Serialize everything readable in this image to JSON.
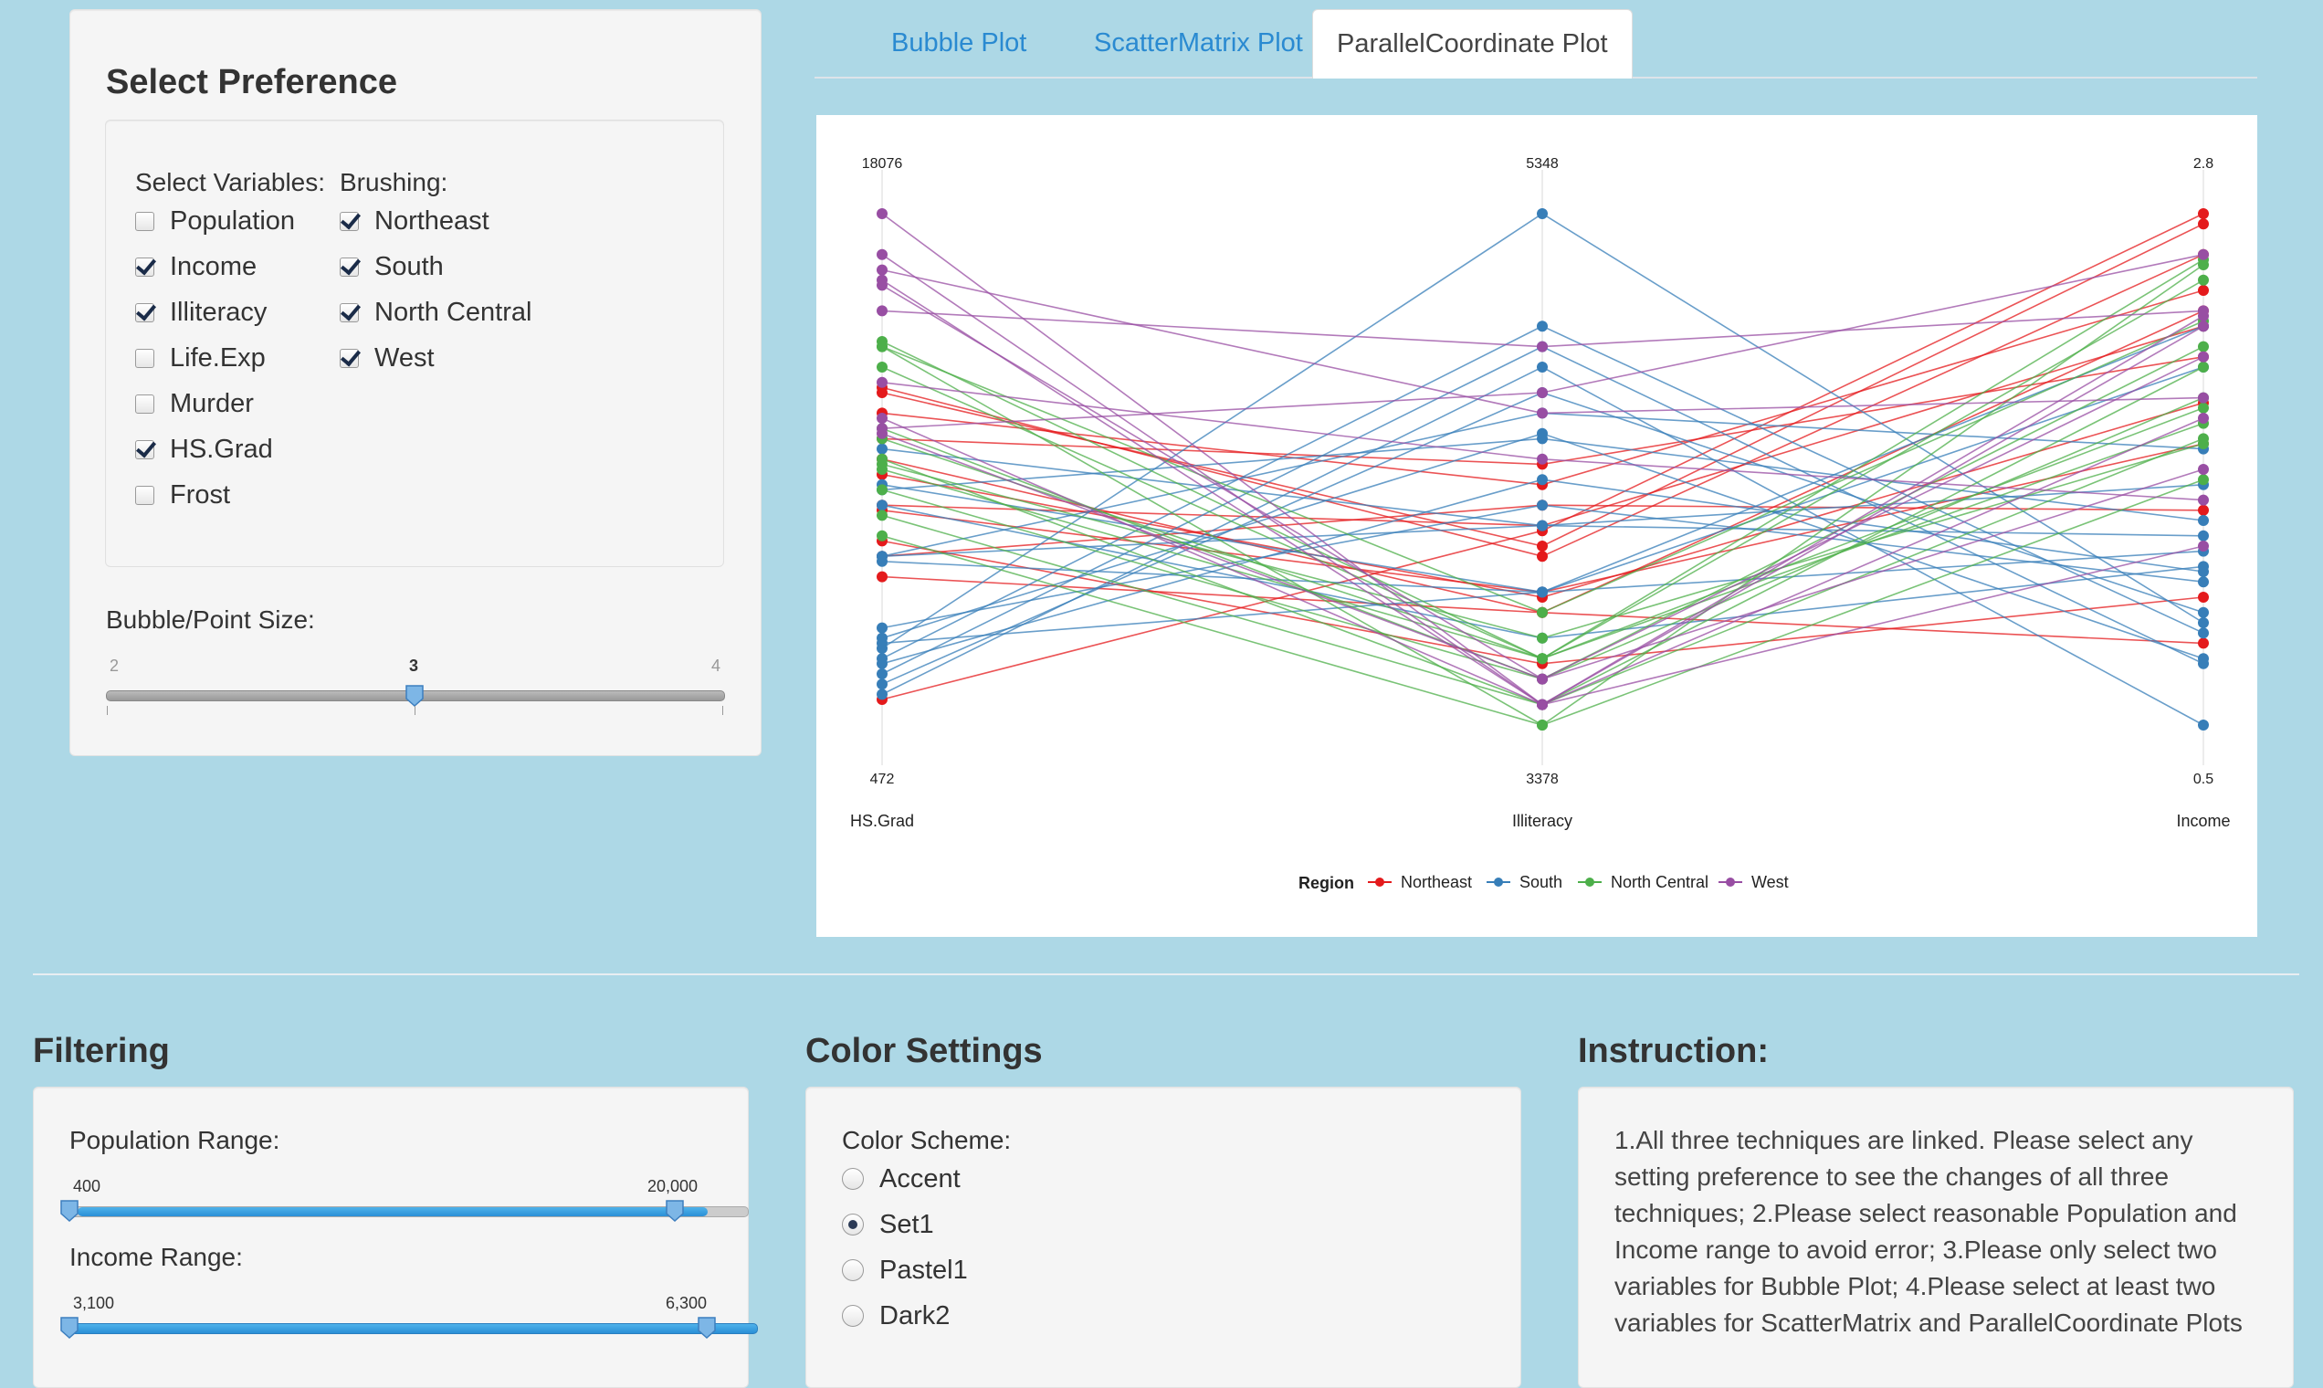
{
  "sidebar": {
    "title": "Select Preference",
    "variables_label": "Select Variables:",
    "brushing_label": "Brushing:",
    "variables": [
      {
        "label": "Population",
        "checked": false
      },
      {
        "label": "Income",
        "checked": true
      },
      {
        "label": "Illiteracy",
        "checked": true
      },
      {
        "label": "Life.Exp",
        "checked": false
      },
      {
        "label": "Murder",
        "checked": false
      },
      {
        "label": "HS.Grad",
        "checked": true
      },
      {
        "label": "Frost",
        "checked": false
      }
    ],
    "brushing": [
      {
        "label": "Northeast",
        "checked": true
      },
      {
        "label": "South",
        "checked": true
      },
      {
        "label": "North Central",
        "checked": true
      },
      {
        "label": "West",
        "checked": true
      }
    ],
    "size_slider": {
      "label": "Bubble/Point Size:",
      "min": "2",
      "max": "4",
      "value": "3"
    }
  },
  "tabs": [
    {
      "label": "Bubble Plot",
      "active": false
    },
    {
      "label": "ScatterMatrix Plot",
      "active": false
    },
    {
      "label": "ParallelCoordinate Plot",
      "active": true
    }
  ],
  "chart_data": {
    "type": "parallel_coordinates",
    "axes": [
      {
        "name": "HS.Grad",
        "top": "18076",
        "bottom": "472"
      },
      {
        "name": "Illiteracy",
        "top": "5348",
        "bottom": "3378"
      },
      {
        "name": "Income",
        "top": "2.8",
        "bottom": "0.5"
      }
    ],
    "legend": {
      "title": "Region",
      "entries": [
        {
          "name": "Northeast",
          "color": "#e41a1c"
        },
        {
          "name": "South",
          "color": "#377eb8"
        },
        {
          "name": "North Central",
          "color": "#4daf4a"
        },
        {
          "name": "West",
          "color": "#984ea3"
        }
      ]
    },
    "scale": "each axis normalized 0 (bottom) to 1 (top)",
    "lines": [
      {
        "r": 0,
        "v": [
          0.05,
          0.38,
          1.0
        ]
      },
      {
        "r": 0,
        "v": [
          0.65,
          0.35,
          0.98
        ]
      },
      {
        "r": 0,
        "v": [
          0.66,
          0.33,
          0.92
        ]
      },
      {
        "r": 0,
        "v": [
          0.61,
          0.47,
          0.85
        ]
      },
      {
        "r": 0,
        "v": [
          0.56,
          0.51,
          0.72
        ]
      },
      {
        "r": 0,
        "v": [
          0.42,
          0.26,
          0.55
        ]
      },
      {
        "r": 0,
        "v": [
          0.49,
          0.25,
          0.63
        ]
      },
      {
        "r": 0,
        "v": [
          0.33,
          0.43,
          0.42
        ]
      },
      {
        "r": 0,
        "v": [
          0.29,
          0.22,
          0.16
        ]
      },
      {
        "r": 0,
        "v": [
          0.36,
          0.12,
          0.25
        ]
      },
      {
        "r": 0,
        "v": [
          0.43,
          0.39,
          0.78
        ]
      },
      {
        "r": 0,
        "v": [
          0.52,
          0.22,
          0.81
        ]
      },
      {
        "r": 1,
        "v": [
          0.15,
          1.0,
          0.2
        ]
      },
      {
        "r": 1,
        "v": [
          0.13,
          0.78,
          0.18
        ]
      },
      {
        "r": 1,
        "v": [
          0.1,
          0.74,
          0.12
        ]
      },
      {
        "r": 1,
        "v": [
          0.06,
          0.7,
          0.0
        ]
      },
      {
        "r": 1,
        "v": [
          0.08,
          0.65,
          0.22
        ]
      },
      {
        "r": 1,
        "v": [
          0.17,
          0.57,
          0.13
        ]
      },
      {
        "r": 1,
        "v": [
          0.12,
          0.48,
          0.3
        ]
      },
      {
        "r": 1,
        "v": [
          0.19,
          0.43,
          0.28
        ]
      },
      {
        "r": 1,
        "v": [
          0.33,
          0.39,
          0.37
        ]
      },
      {
        "r": 1,
        "v": [
          0.16,
          0.26,
          0.34
        ]
      },
      {
        "r": 1,
        "v": [
          0.43,
          0.17,
          0.31
        ]
      },
      {
        "r": 1,
        "v": [
          0.32,
          0.26,
          0.78
        ]
      },
      {
        "r": 1,
        "v": [
          0.46,
          0.56,
          0.4
        ]
      },
      {
        "r": 1,
        "v": [
          0.33,
          0.61,
          0.54
        ]
      },
      {
        "r": 1,
        "v": [
          0.47,
          0.26,
          0.7
        ]
      },
      {
        "r": 1,
        "v": [
          0.54,
          0.39,
          0.47
        ]
      },
      {
        "r": 2,
        "v": [
          0.75,
          0.13,
          0.87
        ]
      },
      {
        "r": 2,
        "v": [
          0.74,
          0.0,
          0.9
        ]
      },
      {
        "r": 2,
        "v": [
          0.56,
          0.13,
          0.91
        ]
      },
      {
        "r": 2,
        "v": [
          0.52,
          0.04,
          0.7
        ]
      },
      {
        "r": 2,
        "v": [
          0.51,
          0.17,
          0.55
        ]
      },
      {
        "r": 2,
        "v": [
          0.37,
          0.0,
          0.48
        ]
      },
      {
        "r": 2,
        "v": [
          0.74,
          0.22,
          0.79
        ]
      },
      {
        "r": 2,
        "v": [
          0.46,
          0.09,
          0.64
        ]
      },
      {
        "r": 2,
        "v": [
          0.7,
          0.13,
          0.62
        ]
      },
      {
        "r": 2,
        "v": [
          0.41,
          0.04,
          0.56
        ]
      },
      {
        "r": 2,
        "v": [
          0.58,
          0.09,
          0.74
        ]
      },
      {
        "r": 2,
        "v": [
          0.5,
          0.13,
          0.59
        ]
      },
      {
        "r": 3,
        "v": [
          1.0,
          0.04,
          0.8
        ]
      },
      {
        "r": 3,
        "v": [
          0.92,
          0.04,
          0.78
        ]
      },
      {
        "r": 3,
        "v": [
          0.89,
          0.61,
          0.64
        ]
      },
      {
        "r": 3,
        "v": [
          0.87,
          0.04,
          0.6
        ]
      },
      {
        "r": 3,
        "v": [
          0.86,
          0.09,
          0.72
        ]
      },
      {
        "r": 3,
        "v": [
          0.81,
          0.74,
          0.81
        ]
      },
      {
        "r": 3,
        "v": [
          0.67,
          0.52,
          0.44
        ]
      },
      {
        "r": 3,
        "v": [
          0.6,
          0.04,
          0.35
        ]
      },
      {
        "r": 3,
        "v": [
          0.58,
          0.65,
          0.92
        ]
      },
      {
        "r": 3,
        "v": [
          0.57,
          0.09,
          0.5
        ]
      }
    ]
  },
  "filtering": {
    "title": "Filtering",
    "population": {
      "label": "Population Range:",
      "min": "400",
      "max": "20,000"
    },
    "income": {
      "label": "Income Range:",
      "min": "3,100",
      "max": "6,300"
    }
  },
  "color_settings": {
    "title": "Color Settings",
    "label": "Color Scheme:",
    "options": [
      {
        "label": "Accent",
        "selected": false
      },
      {
        "label": "Set1",
        "selected": true
      },
      {
        "label": "Pastel1",
        "selected": false
      },
      {
        "label": "Dark2",
        "selected": false
      }
    ]
  },
  "instruction": {
    "title": "Instruction:",
    "lines": [
      "1.All three techniques are linked. Please select any",
      "setting preference to see the changes of all three",
      "techniques; 2.Please select reasonable Population and",
      "Income range to avoid error; 3.Please only select two",
      "variables for Bubble Plot; 4.Please select at least two",
      "variables for ScatterMatrix and ParallelCoordinate Plots"
    ]
  }
}
